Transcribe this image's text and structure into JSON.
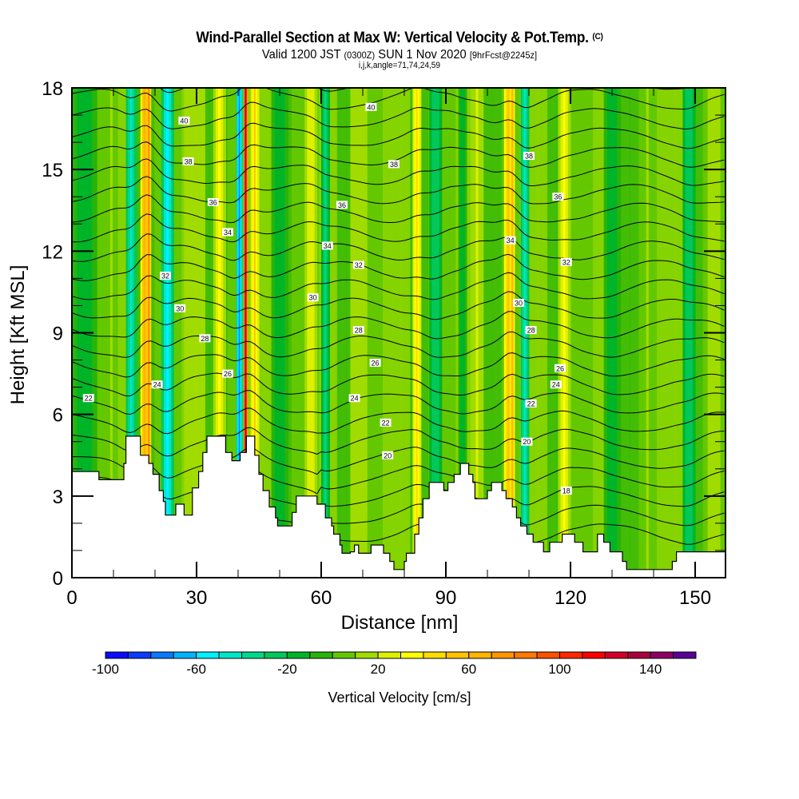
{
  "chart_data": {
    "type": "heatmap",
    "title": "Wind-Parallel Section at Max W: Vertical Velocity & Pot.Temp.",
    "title_mark": "(C)",
    "subtitle_main_a": "Valid 1200 JST",
    "subtitle_zulu": "(0300Z)",
    "subtitle_main_b": "SUN 1 Nov 2020",
    "subtitle_fcst": "[9hrFcst@2245z]",
    "subtitle2": "i,j,k,angle=71,74,24,59",
    "xlabel": "Distance [nm]",
    "ylabel": "Height [Kft MSL]",
    "xlim": [
      0,
      157.3
    ],
    "ylim": [
      0,
      18
    ],
    "xticks": [
      0,
      30,
      60,
      90,
      120,
      150
    ],
    "yticks": [
      0,
      3,
      6,
      9,
      12,
      15,
      18
    ],
    "colorbar": {
      "label": "Vertical Velocity [cm/s]",
      "min": -100,
      "max": 160,
      "step": 10,
      "tick_labels": [
        "-100",
        "-60",
        "-20",
        "20",
        "60",
        "100",
        "140"
      ],
      "colors": [
        "#0a0aff",
        "#0a3cff",
        "#0a78ff",
        "#00b4ff",
        "#00f0ff",
        "#00e6c8",
        "#00d98c",
        "#00c85a",
        "#00b428",
        "#28b40a",
        "#64c800",
        "#a0dc00",
        "#dcf000",
        "#ffff00",
        "#ffdc00",
        "#ffc300",
        "#ffb400",
        "#ff9600",
        "#ff7800",
        "#ff5000",
        "#ff2800",
        "#ff0000",
        "#d20028",
        "#aa003c",
        "#8c0064",
        "#5a0096"
      ]
    },
    "velocity_bands": [
      {
        "x": 0,
        "w": 6,
        "value": -15
      },
      {
        "x": 8,
        "w": 3,
        "value": 10
      },
      {
        "x": 13,
        "w": 2.5,
        "value": -50
      },
      {
        "x": 16.5,
        "w": 2,
        "value": 65
      },
      {
        "x": 18,
        "w": 1,
        "value": 80
      },
      {
        "x": 21.5,
        "w": 3,
        "value": -55
      },
      {
        "x": 27,
        "w": 5,
        "value": 15
      },
      {
        "x": 34,
        "w": 3,
        "value": 30
      },
      {
        "x": 39.5,
        "w": 1.6,
        "value": -75
      },
      {
        "x": 41.3,
        "w": 1,
        "value": 130
      },
      {
        "x": 43,
        "w": 2,
        "value": 50
      },
      {
        "x": 48,
        "w": 4,
        "value": -15
      },
      {
        "x": 56,
        "w": 3,
        "value": 25
      },
      {
        "x": 60,
        "w": 2,
        "value": -40
      },
      {
        "x": 67,
        "w": 4,
        "value": 15
      },
      {
        "x": 82,
        "w": 2,
        "value": 40
      },
      {
        "x": 86,
        "w": 3,
        "value": -30
      },
      {
        "x": 93,
        "w": 2,
        "value": -20
      },
      {
        "x": 96,
        "w": 3,
        "value": 20
      },
      {
        "x": 104,
        "w": 2,
        "value": 55
      },
      {
        "x": 105.5,
        "w": 1,
        "value": 65
      },
      {
        "x": 108,
        "w": 2,
        "value": -45
      },
      {
        "x": 117,
        "w": 3,
        "value": 30
      },
      {
        "x": 128,
        "w": 4,
        "value": -20
      },
      {
        "x": 137,
        "w": 3,
        "value": 10
      },
      {
        "x": 147,
        "w": 3,
        "value": -30
      },
      {
        "x": 153,
        "w": 3,
        "value": 15
      }
    ],
    "base_value": 5,
    "terrain_kft": [
      [
        0,
        3.9
      ],
      [
        6.5,
        3.9
      ],
      [
        6.5,
        3.6
      ],
      [
        12.5,
        3.6
      ],
      [
        12.5,
        4.2
      ],
      [
        13,
        4.2
      ],
      [
        13,
        5.2
      ],
      [
        16.5,
        5.2
      ],
      [
        16.5,
        4.5
      ],
      [
        18.5,
        4.5
      ],
      [
        18.5,
        4.2
      ],
      [
        19.5,
        4.2
      ],
      [
        19.5,
        3.8
      ],
      [
        21,
        3.8
      ],
      [
        21,
        3.2
      ],
      [
        22,
        3.2
      ],
      [
        22,
        2.8
      ],
      [
        22.5,
        2.8
      ],
      [
        22.5,
        2.3
      ],
      [
        25,
        2.3
      ],
      [
        25,
        2.7
      ],
      [
        27,
        2.7
      ],
      [
        27,
        2.3
      ],
      [
        29,
        2.3
      ],
      [
        29,
        3.3
      ],
      [
        30.5,
        3.3
      ],
      [
        30.5,
        3.9
      ],
      [
        31.5,
        3.9
      ],
      [
        31.5,
        4.6
      ],
      [
        32.5,
        4.6
      ],
      [
        32.5,
        5.2
      ],
      [
        37,
        5.2
      ],
      [
        37,
        4.6
      ],
      [
        38.5,
        4.6
      ],
      [
        38.5,
        4.3
      ],
      [
        40.5,
        4.3
      ],
      [
        40.5,
        4.6
      ],
      [
        42,
        4.6
      ],
      [
        42,
        5.2
      ],
      [
        44,
        5.2
      ],
      [
        44,
        4.5
      ],
      [
        45,
        4.5
      ],
      [
        45,
        3.8
      ],
      [
        46,
        3.8
      ],
      [
        46,
        3.2
      ],
      [
        47.5,
        3.2
      ],
      [
        47.5,
        2.6
      ],
      [
        49,
        2.6
      ],
      [
        49,
        2.2
      ],
      [
        49.5,
        2.2
      ],
      [
        49.5,
        1.9
      ],
      [
        53,
        1.9
      ],
      [
        53,
        2.4
      ],
      [
        54,
        2.4
      ],
      [
        54,
        3.0
      ],
      [
        59,
        3.0
      ],
      [
        59,
        2.7
      ],
      [
        61,
        2.7
      ],
      [
        61,
        2.2
      ],
      [
        62.5,
        2.2
      ],
      [
        62.5,
        1.9
      ],
      [
        63,
        1.9
      ],
      [
        63,
        1.6
      ],
      [
        64.5,
        1.6
      ],
      [
        64.5,
        1.2
      ],
      [
        65,
        1.2
      ],
      [
        65,
        0.9
      ],
      [
        67,
        0.9
      ],
      [
        67,
        0.95
      ],
      [
        68,
        0.95
      ],
      [
        68,
        1.2
      ],
      [
        69,
        1.2
      ],
      [
        69,
        0.9
      ],
      [
        72,
        0.9
      ],
      [
        72,
        1.2
      ],
      [
        75,
        1.2
      ],
      [
        75,
        0.9
      ],
      [
        76.5,
        0.9
      ],
      [
        76.5,
        0.6
      ],
      [
        77.5,
        0.6
      ],
      [
        77.5,
        0.3
      ],
      [
        80,
        0.3
      ],
      [
        80,
        0.6
      ],
      [
        80.5,
        0.6
      ],
      [
        80.5,
        0.9
      ],
      [
        82.5,
        0.9
      ],
      [
        82.5,
        1.6
      ],
      [
        83.5,
        1.6
      ],
      [
        83.5,
        2.2
      ],
      [
        84.5,
        2.2
      ],
      [
        84.5,
        2.9
      ],
      [
        86,
        2.9
      ],
      [
        86,
        3.5
      ],
      [
        89.5,
        3.5
      ],
      [
        89.5,
        3.2
      ],
      [
        90.5,
        3.2
      ],
      [
        90.5,
        3.5
      ],
      [
        92,
        3.5
      ],
      [
        92,
        3.8
      ],
      [
        93.5,
        3.8
      ],
      [
        93.5,
        4.2
      ],
      [
        95.5,
        4.2
      ],
      [
        95.5,
        3.8
      ],
      [
        96.5,
        3.8
      ],
      [
        96.5,
        3.5
      ],
      [
        97,
        3.5
      ],
      [
        97,
        2.9
      ],
      [
        100,
        2.9
      ],
      [
        100,
        3.2
      ],
      [
        101,
        3.2
      ],
      [
        101,
        3.5
      ],
      [
        103.5,
        3.5
      ],
      [
        103.5,
        3.2
      ],
      [
        104.5,
        3.2
      ],
      [
        104.5,
        2.9
      ],
      [
        106,
        2.9
      ],
      [
        106,
        2.6
      ],
      [
        107,
        2.6
      ],
      [
        107,
        2.2
      ],
      [
        108,
        2.2
      ],
      [
        108,
        1.9
      ],
      [
        109.5,
        1.9
      ],
      [
        109.5,
        1.6
      ],
      [
        111,
        1.6
      ],
      [
        111,
        1.3
      ],
      [
        113.5,
        1.3
      ],
      [
        113.5,
        0.95
      ],
      [
        115,
        0.95
      ],
      [
        115,
        1.3
      ],
      [
        118,
        1.3
      ],
      [
        118,
        1.6
      ],
      [
        121,
        1.6
      ],
      [
        121,
        1.3
      ],
      [
        123,
        1.3
      ],
      [
        123,
        0.95
      ],
      [
        126.5,
        0.95
      ],
      [
        126.5,
        1.6
      ],
      [
        128,
        1.6
      ],
      [
        128,
        1.3
      ],
      [
        129.5,
        1.3
      ],
      [
        129.5,
        0.95
      ],
      [
        132.5,
        0.95
      ],
      [
        132.5,
        0.6
      ],
      [
        133.5,
        0.6
      ],
      [
        133.5,
        0.3
      ],
      [
        144.5,
        0.3
      ],
      [
        144.5,
        0.6
      ],
      [
        145.5,
        0.6
      ],
      [
        145.5,
        0.95
      ],
      [
        157.3,
        0.95
      ]
    ],
    "isentrope_levels": [
      18,
      19,
      20,
      21,
      22,
      23,
      24,
      25,
      26,
      27,
      28,
      29,
      30,
      31,
      32,
      33,
      34,
      35,
      36,
      37,
      38,
      39,
      40,
      41,
      42
    ],
    "contour_labels": [
      {
        "text": "40",
        "x": 27,
        "y": 16.8
      },
      {
        "text": "40",
        "x": 72,
        "y": 17.3
      },
      {
        "text": "38",
        "x": 28,
        "y": 15.3
      },
      {
        "text": "38",
        "x": 77.5,
        "y": 15.2
      },
      {
        "text": "38",
        "x": 110,
        "y": 15.5
      },
      {
        "text": "36",
        "x": 34,
        "y": 13.8
      },
      {
        "text": "36",
        "x": 65,
        "y": 13.7
      },
      {
        "text": "36",
        "x": 117,
        "y": 14.0
      },
      {
        "text": "34",
        "x": 37.5,
        "y": 12.7
      },
      {
        "text": "34",
        "x": 61.5,
        "y": 12.2
      },
      {
        "text": "34",
        "x": 105.5,
        "y": 12.4
      },
      {
        "text": "32",
        "x": 22.5,
        "y": 11.1
      },
      {
        "text": "32",
        "x": 69,
        "y": 11.5
      },
      {
        "text": "32",
        "x": 119,
        "y": 11.6
      },
      {
        "text": "30",
        "x": 26,
        "y": 9.9
      },
      {
        "text": "30",
        "x": 58,
        "y": 10.3
      },
      {
        "text": "30",
        "x": 107.5,
        "y": 10.1
      },
      {
        "text": "28",
        "x": 32,
        "y": 8.8
      },
      {
        "text": "28",
        "x": 69,
        "y": 9.1
      },
      {
        "text": "28",
        "x": 110.5,
        "y": 9.1
      },
      {
        "text": "26",
        "x": 37.5,
        "y": 7.5
      },
      {
        "text": "26",
        "x": 73,
        "y": 7.9
      },
      {
        "text": "26",
        "x": 117.5,
        "y": 7.7
      },
      {
        "text": "24",
        "x": 20.5,
        "y": 7.1
      },
      {
        "text": "24",
        "x": 68,
        "y": 6.6
      },
      {
        "text": "24",
        "x": 116.5,
        "y": 7.1
      },
      {
        "text": "22",
        "x": 4,
        "y": 6.6
      },
      {
        "text": "22",
        "x": 110.5,
        "y": 6.4
      },
      {
        "text": "22",
        "x": 75.5,
        "y": 5.7
      },
      {
        "text": "20",
        "x": 76,
        "y": 4.5
      },
      {
        "text": "20",
        "x": 109.5,
        "y": 5.0
      },
      {
        "text": "18",
        "x": 119,
        "y": 3.2
      }
    ]
  }
}
